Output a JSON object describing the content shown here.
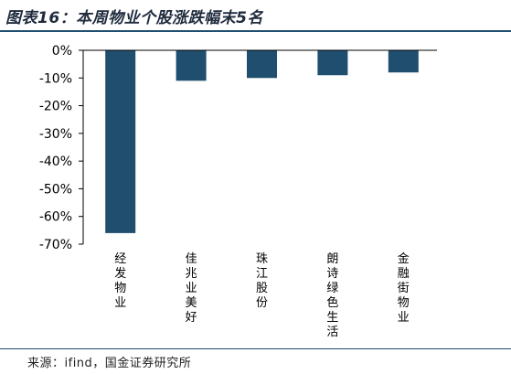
{
  "title": "图表16：本周物业个股涨跌幅末5名",
  "source": "来源：ifind，国金证券研究所",
  "colors": {
    "bar": "#1f4e6e",
    "rule": "#1f4e6e",
    "axis": "#000000"
  },
  "chart_data": {
    "type": "bar",
    "orientation": "vertical",
    "categories": [
      "经发物业",
      "佳兆业美好",
      "珠江股份",
      "朗诗绿色生活",
      "金融街物业"
    ],
    "values": [
      -66,
      -11,
      -10,
      -9,
      -8
    ],
    "ylim": [
      -70,
      0
    ],
    "yticks": [
      0,
      -10,
      -20,
      -30,
      -40,
      -50,
      -60,
      -70
    ],
    "ytick_labels": [
      "0%",
      "-10%",
      "-20%",
      "-30%",
      "-40%",
      "-50%",
      "-60%",
      "-70%"
    ],
    "grid": false,
    "xlabel": "",
    "ylabel": ""
  }
}
